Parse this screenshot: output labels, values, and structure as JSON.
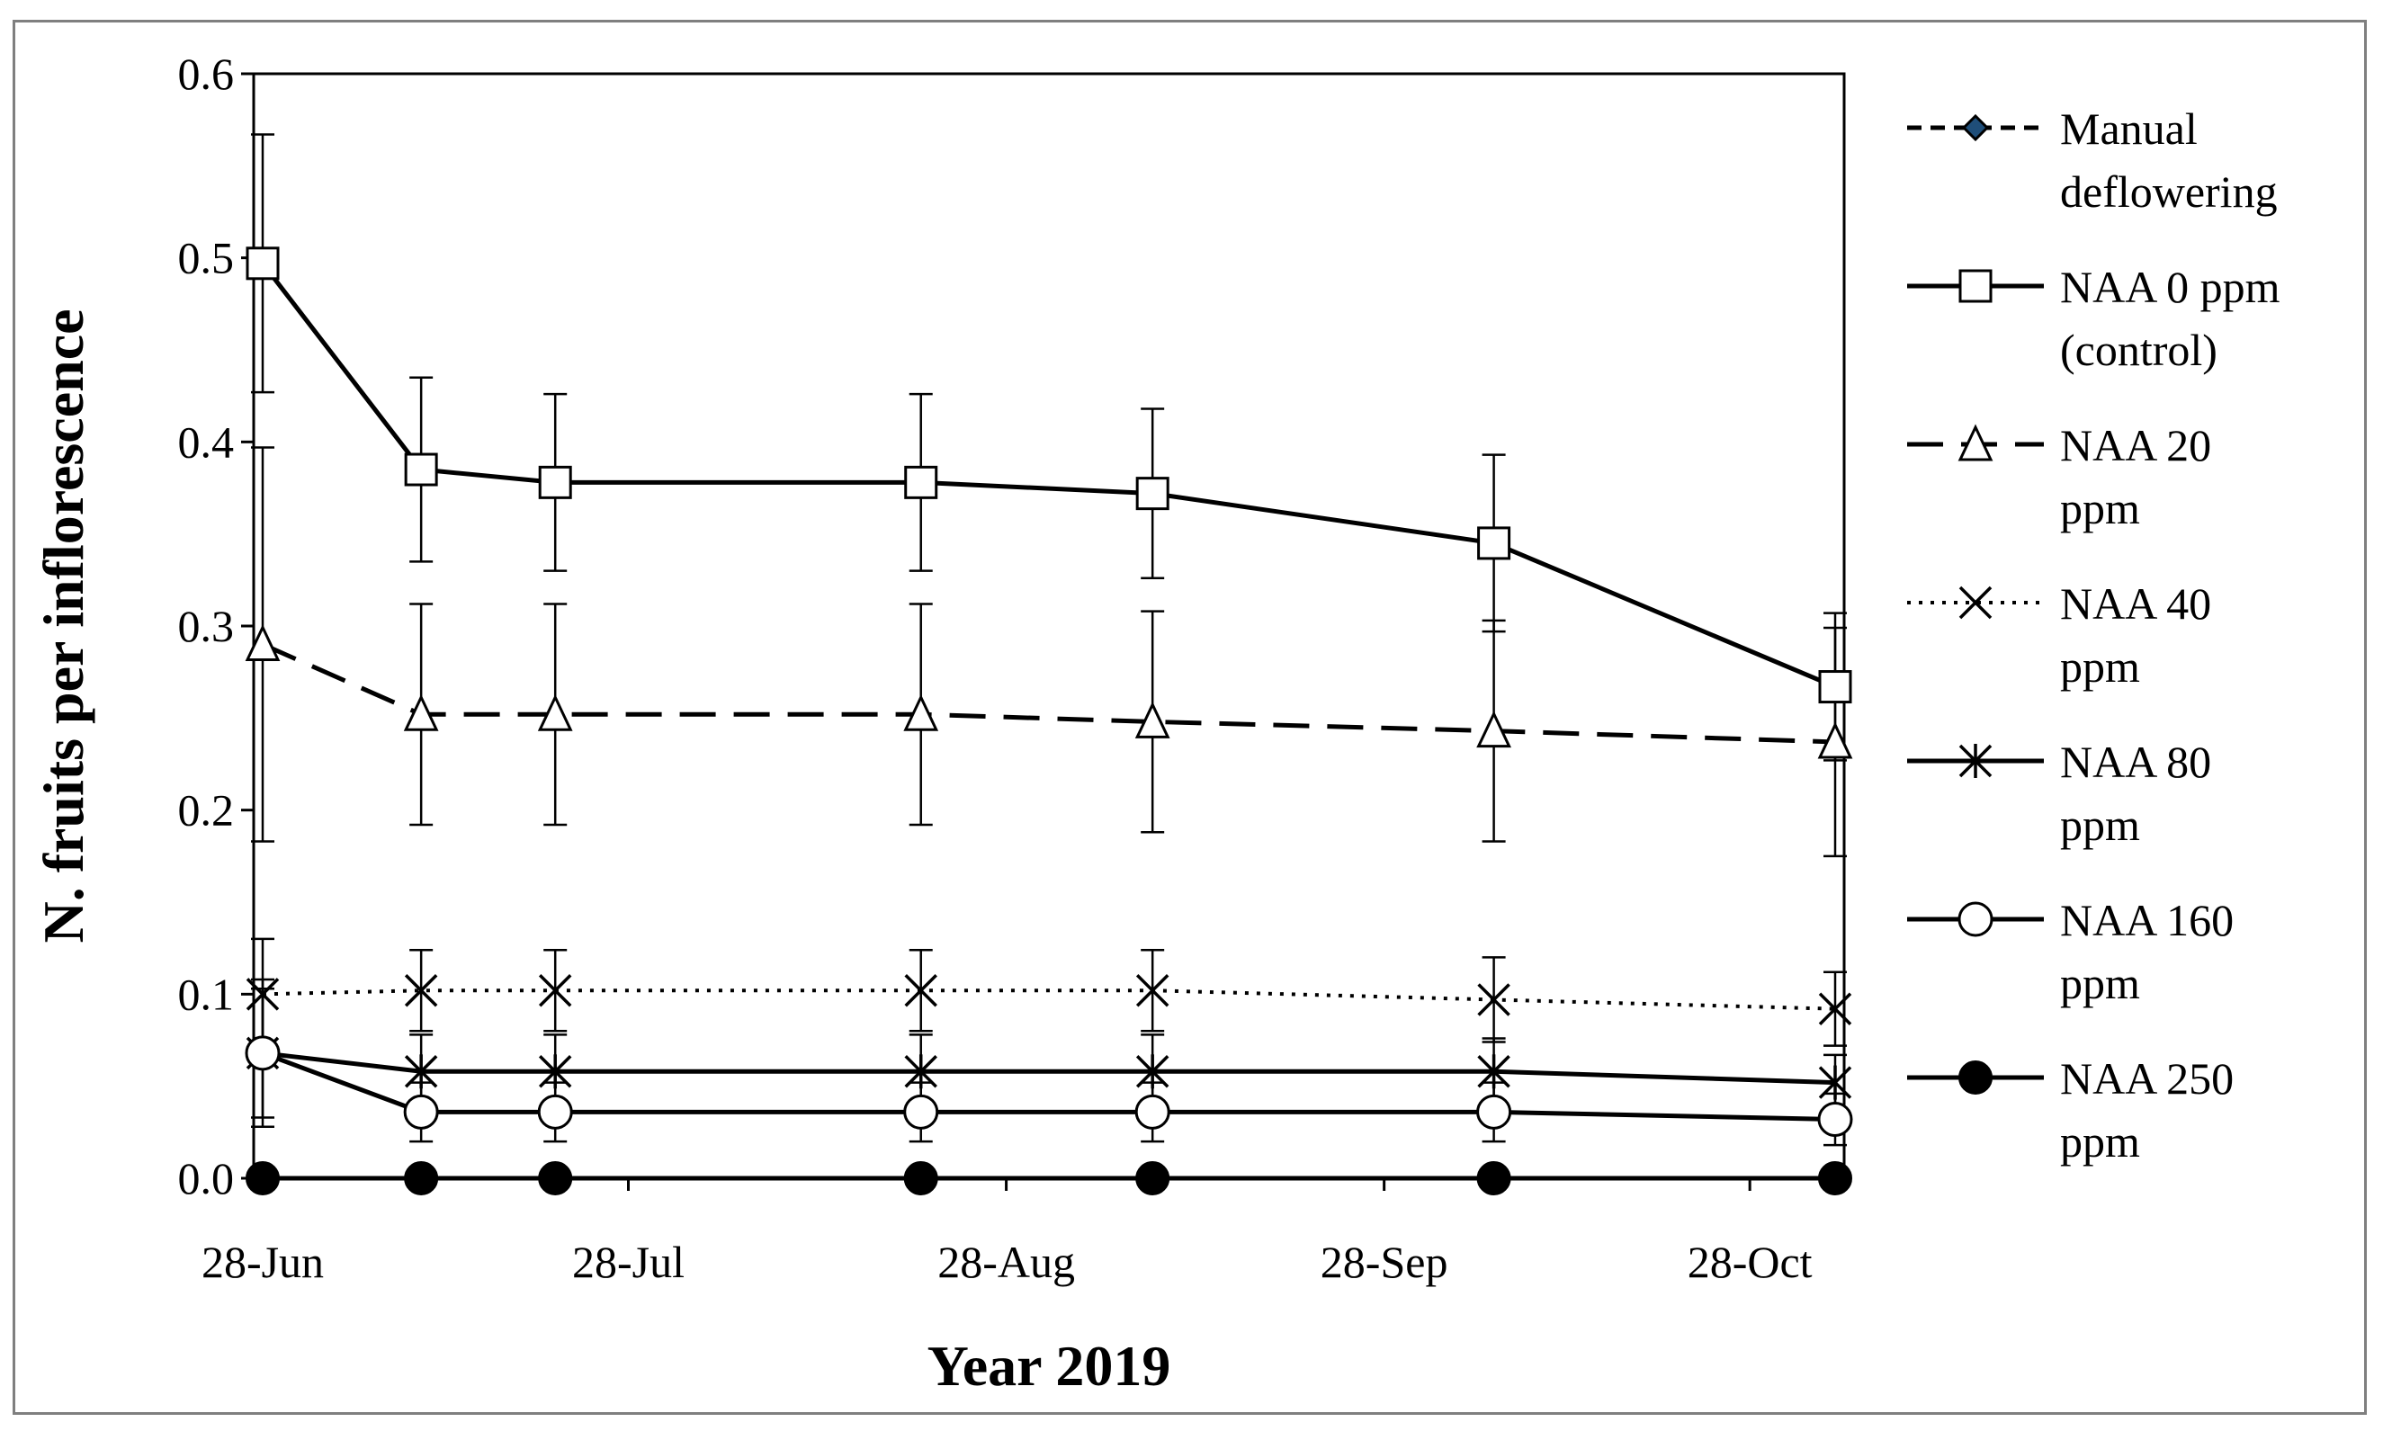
{
  "chart_data": {
    "type": "line",
    "title": "",
    "xlabel": "Year 2019",
    "ylabel": "N. fruits per inflorescence",
    "ylim": [
      0,
      0.6
    ],
    "yticks": [
      "0.0",
      "0.1",
      "0.2",
      "0.3",
      "0.4",
      "0.5",
      "0.6"
    ],
    "xlim_days": [
      0,
      129
    ],
    "xticks": [
      {
        "label": "28-Jun",
        "day": 0
      },
      {
        "label": "28-Jul",
        "day": 30
      },
      {
        "label": "28-Aug",
        "day": 61
      },
      {
        "label": "28-Sep",
        "day": 92
      },
      {
        "label": "28-Oct",
        "day": 122
      }
    ],
    "x_days": [
      0,
      13,
      24,
      54,
      73,
      101,
      129
    ],
    "series": [
      {
        "name": "Manual deflowering",
        "legend": [
          "Manual",
          "deflowering"
        ],
        "style": "dashed",
        "marker": "diamond",
        "values": [],
        "errors": []
      },
      {
        "name": "NAA 0 ppm (control)",
        "legend": [
          "NAA 0 ppm",
          "(control)"
        ],
        "style": "solid",
        "marker": "square",
        "values": [
          0.497,
          0.385,
          0.378,
          0.378,
          0.372,
          0.345,
          0.267
        ],
        "errors": [
          0.07,
          0.05,
          0.048,
          0.048,
          0.046,
          0.048,
          0.04
        ]
      },
      {
        "name": "NAA 20 ppm",
        "legend": [
          "NAA 20",
          "ppm"
        ],
        "style": "longdash",
        "marker": "triangle",
        "values": [
          0.29,
          0.252,
          0.252,
          0.252,
          0.248,
          0.243,
          0.237
        ],
        "errors": [
          0.107,
          0.06,
          0.06,
          0.06,
          0.06,
          0.06,
          0.062
        ]
      },
      {
        "name": "NAA 40 ppm",
        "legend": [
          "NAA 40",
          "ppm"
        ],
        "style": "dotted",
        "marker": "x",
        "values": [
          0.1,
          0.102,
          0.102,
          0.102,
          0.102,
          0.097,
          0.092
        ],
        "errors": [
          0.03,
          0.022,
          0.022,
          0.022,
          0.022,
          0.023,
          0.02
        ]
      },
      {
        "name": "NAA 80 ppm",
        "legend": [
          "NAA 80",
          "ppm"
        ],
        "style": "solid",
        "marker": "star",
        "values": [
          0.068,
          0.058,
          0.058,
          0.058,
          0.058,
          0.058,
          0.052
        ],
        "errors": [
          0.035,
          0.02,
          0.02,
          0.02,
          0.02,
          0.018,
          0.015
        ]
      },
      {
        "name": "NAA 160 ppm",
        "legend": [
          "NAA 160",
          "ppm"
        ],
        "style": "solid",
        "marker": "circle-open",
        "values": [
          0.068,
          0.036,
          0.036,
          0.036,
          0.036,
          0.036,
          0.032
        ],
        "errors": [
          0.04,
          0.016,
          0.016,
          0.016,
          0.016,
          0.016,
          0.014
        ]
      },
      {
        "name": "NAA 250 ppm",
        "legend": [
          "NAA 250",
          "ppm"
        ],
        "style": "solid",
        "marker": "circle-filled",
        "values": [
          0,
          0,
          0,
          0,
          0,
          0,
          0
        ],
        "errors": [
          0,
          0,
          0,
          0,
          0,
          0,
          0
        ]
      }
    ]
  }
}
